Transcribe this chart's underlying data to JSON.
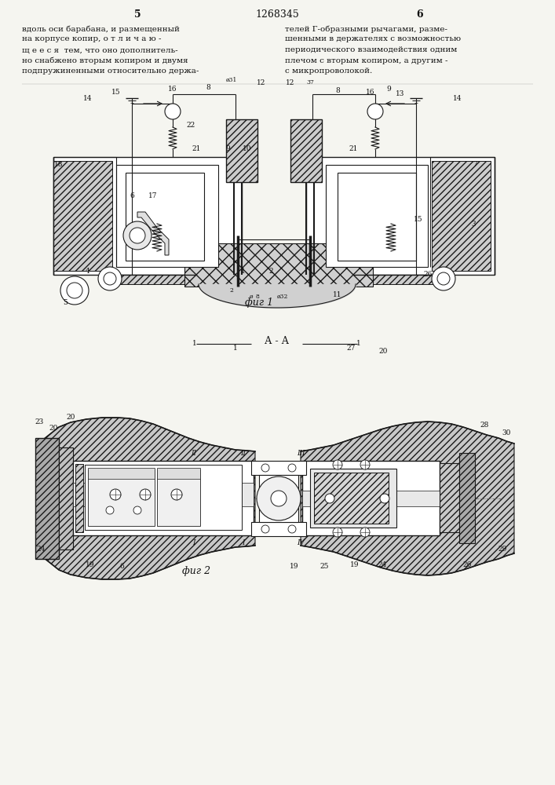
{
  "page_number_left": "5",
  "patent_number": "1268345",
  "page_number_right": "6",
  "text_left_lines": [
    "вдоль оси барабана, и размещенный",
    "на корпусе копир, о т л и ч а ю -",
    "щ е е с я  тем, что оно дополнитель-",
    "но снабжено вторым копиром и двумя",
    "подпружиненными относительно держа-"
  ],
  "text_right_lines": [
    "телей Г-образными рычагами, разме-",
    "шенными в держателях с возможностью",
    "периодического взаимодействия одним",
    "плечом с вторым копиром, а другим -",
    "с микропроволокой."
  ],
  "fig1_label": "фиг 1",
  "fig2_label": "фиг 2",
  "fig2_title": "А-А",
  "background_color": "#f5f5f0",
  "text_color": "#111111",
  "line_color": "#1a1a1a"
}
